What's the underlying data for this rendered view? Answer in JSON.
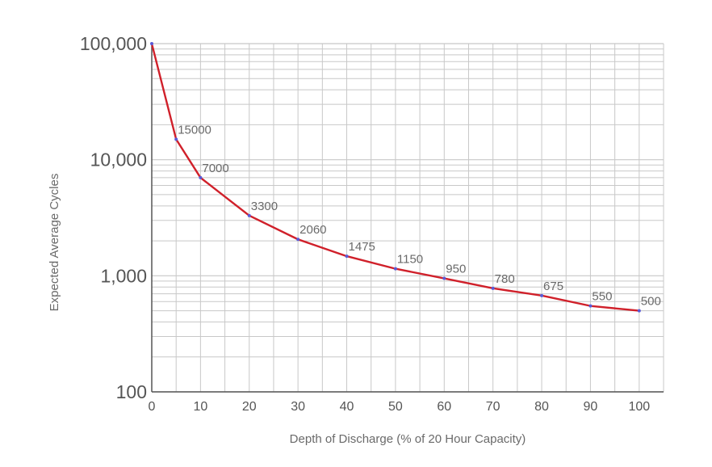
{
  "chart_data": {
    "type": "line",
    "title": "",
    "xlabel": "Depth of Discharge (% of 20 Hour Capacity)",
    "ylabel": "Expected Average Cycles",
    "x_scale": "linear",
    "y_scale": "log",
    "xlim": [
      0,
      105
    ],
    "ylim": [
      100,
      100000
    ],
    "x_ticks": [
      0,
      10,
      20,
      30,
      40,
      50,
      60,
      70,
      80,
      90,
      100
    ],
    "y_ticks": [
      {
        "value": 100,
        "label": "100"
      },
      {
        "value": 1000,
        "label": "1,000"
      },
      {
        "value": 10000,
        "label": "10,000"
      },
      {
        "value": 100000,
        "label": "100,000"
      }
    ],
    "grid": true,
    "series": [
      {
        "name": "Expected Average Cycles",
        "color": "#d0202a",
        "marker_color": "#5a5ad6",
        "points": [
          {
            "x": 0,
            "y": 100000,
            "label": ""
          },
          {
            "x": 5,
            "y": 15000,
            "label": "15000"
          },
          {
            "x": 10,
            "y": 7000,
            "label": "7000"
          },
          {
            "x": 20,
            "y": 3300,
            "label": "3300"
          },
          {
            "x": 30,
            "y": 2060,
            "label": "2060"
          },
          {
            "x": 40,
            "y": 1475,
            "label": "1475"
          },
          {
            "x": 50,
            "y": 1150,
            "label": "1150"
          },
          {
            "x": 60,
            "y": 950,
            "label": "950"
          },
          {
            "x": 70,
            "y": 780,
            "label": "780"
          },
          {
            "x": 80,
            "y": 675,
            "label": "675"
          },
          {
            "x": 90,
            "y": 550,
            "label": "550"
          },
          {
            "x": 100,
            "y": 500,
            "label": "500"
          }
        ]
      }
    ]
  },
  "colors": {
    "grid": "#c8c8c8",
    "axis": "#555555",
    "line": "#d0202a",
    "marker": "#5a5ad6"
  }
}
